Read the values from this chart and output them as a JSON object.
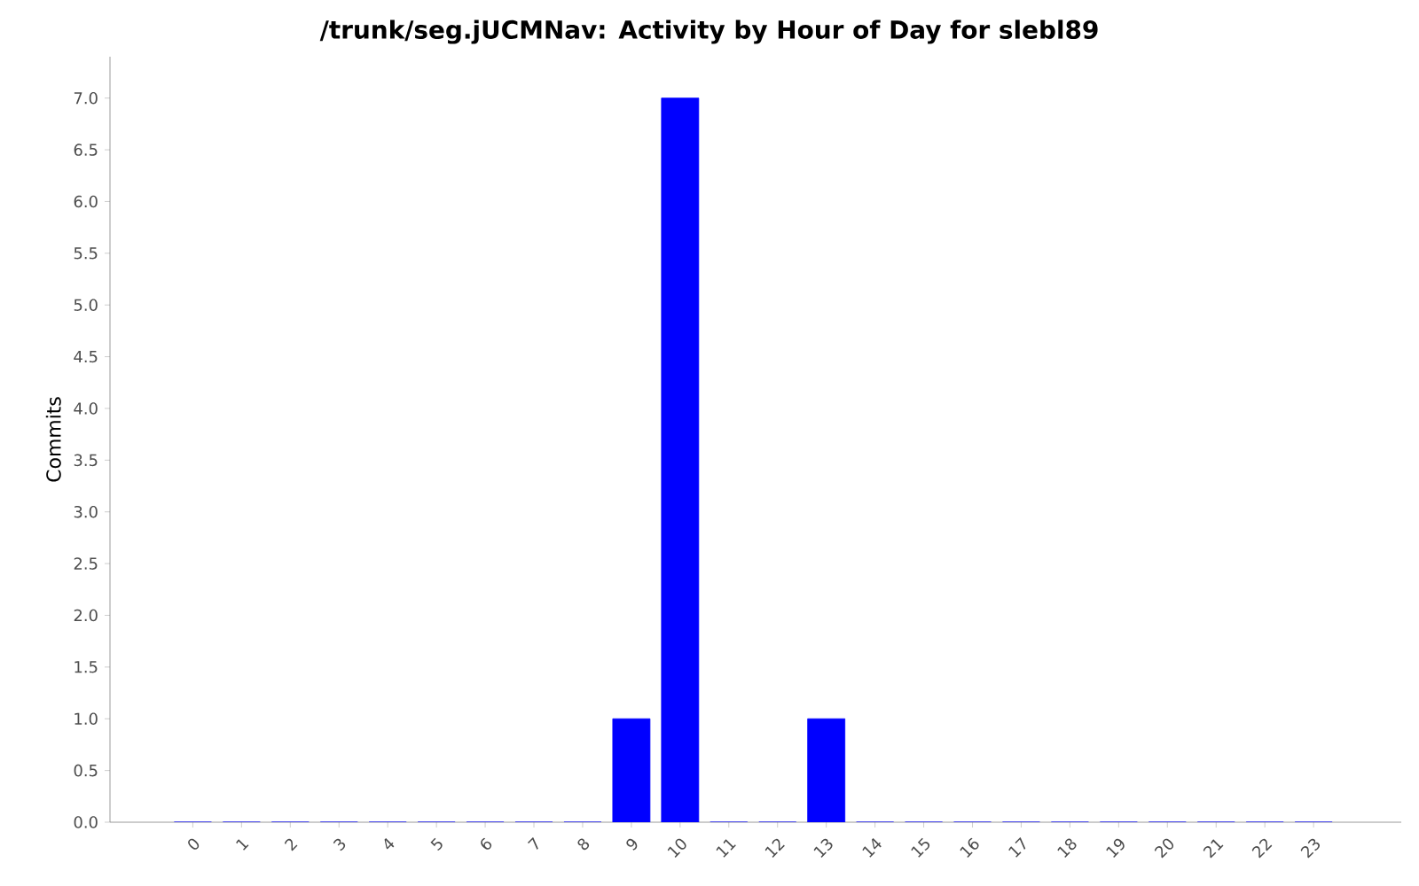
{
  "chart_data": {
    "type": "bar",
    "title": "/trunk/seg.jUCMNav: Activity by Hour of Day for slebl89",
    "ylabel": "Commits",
    "categories": [
      "0",
      "1",
      "2",
      "3",
      "4",
      "5",
      "6",
      "7",
      "8",
      "9",
      "10",
      "11",
      "12",
      "13",
      "14",
      "15",
      "16",
      "17",
      "18",
      "19",
      "20",
      "21",
      "22",
      "23"
    ],
    "values": [
      0,
      0,
      0,
      0,
      0,
      0,
      0,
      0,
      0,
      1,
      7,
      0,
      0,
      1,
      0,
      0,
      0,
      0,
      0,
      0,
      0,
      0,
      0,
      0
    ],
    "color": "#0000ff",
    "ylim": [
      0,
      7.4
    ],
    "yticks": [
      {
        "value": 0,
        "label": "0.0"
      },
      {
        "value": 0.5,
        "label": "0.5"
      },
      {
        "value": 1,
        "label": "1.0"
      },
      {
        "value": 1.5,
        "label": "1.5"
      },
      {
        "value": 2,
        "label": "2.0"
      },
      {
        "value": 2.5,
        "label": "2.5"
      },
      {
        "value": 3,
        "label": "3.0"
      },
      {
        "value": 3.5,
        "label": "3.5"
      },
      {
        "value": 4,
        "label": "4.0"
      },
      {
        "value": 4.5,
        "label": "4.5"
      },
      {
        "value": 5,
        "label": "5.0"
      },
      {
        "value": 5.5,
        "label": "5.5"
      },
      {
        "value": 6,
        "label": "6.0"
      },
      {
        "value": 6.5,
        "label": "6.5"
      },
      {
        "value": 7,
        "label": "7.0"
      }
    ],
    "grid": false
  }
}
